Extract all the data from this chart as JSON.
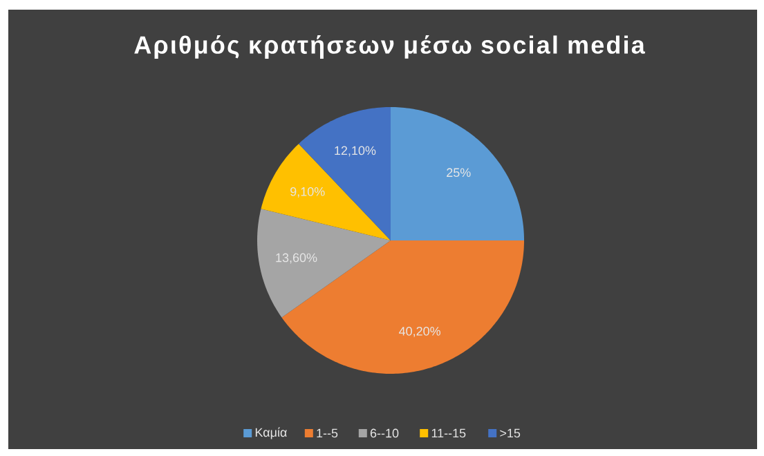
{
  "chart_data": {
    "type": "pie",
    "title": "Αριθμός κρατήσεων μέσω social media",
    "categories": [
      "Καμία",
      "1--5",
      "6--10",
      "11--15",
      ">15"
    ],
    "values": [
      25,
      40.2,
      13.6,
      9.1,
      12.1
    ],
    "value_labels": [
      "25%",
      "40,20%",
      "13,60%",
      "9,10%",
      "12,10%"
    ],
    "colors": [
      "#5b9bd5",
      "#ed7d31",
      "#a5a5a5",
      "#ffc000",
      "#4472c4"
    ],
    "legend": "bottom"
  }
}
